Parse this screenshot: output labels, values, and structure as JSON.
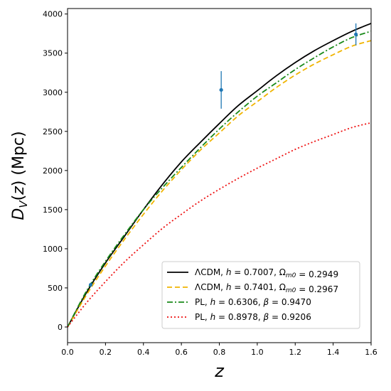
{
  "chart_data": {
    "type": "line",
    "xlabel": "z",
    "ylabel": "D_V(z) (Mpc)",
    "xlim": [
      0.0,
      1.6
    ],
    "ylim": [
      -200,
      4070
    ],
    "x_ticks": [
      0.0,
      0.2,
      0.4,
      0.6,
      0.8,
      1.0,
      1.2,
      1.4,
      1.6
    ],
    "x_tick_labels": [
      "0.0",
      "0.2",
      "0.4",
      "0.6",
      "0.8",
      "1.0",
      "1.2",
      "1.4",
      "1.6"
    ],
    "y_ticks": [
      0,
      500,
      1000,
      1500,
      2000,
      2500,
      3000,
      3500,
      4000
    ],
    "y_tick_labels": [
      "0",
      "500",
      "1000",
      "1500",
      "2000",
      "2500",
      "3000",
      "3500",
      "4000"
    ],
    "grid": false,
    "legend_position": "lower-right",
    "x": [
      0.0,
      0.1,
      0.2,
      0.3,
      0.4,
      0.5,
      0.6,
      0.7,
      0.8,
      0.9,
      1.0,
      1.1,
      1.2,
      1.3,
      1.4,
      1.5,
      1.6
    ],
    "series": [
      {
        "name": "ΛCDM, h = 0.7007, Ω_m0 = 0.2949",
        "label_parts": [
          {
            "text": "ΛCDM, ",
            "italic": false
          },
          {
            "text": "h",
            "italic": true
          },
          {
            "text": " = 0.7007, ",
            "italic": false
          },
          {
            "text": "Ω",
            "italic": false
          },
          {
            "text": "m0",
            "italic": true,
            "sub": true
          },
          {
            "text": " = 0.2949",
            "italic": false
          }
        ],
        "style": "solid",
        "color": "#000000",
        "values": [
          0,
          440,
          820,
          1160,
          1500,
          1820,
          2110,
          2360,
          2600,
          2830,
          3020,
          3210,
          3380,
          3530,
          3660,
          3780,
          3880
        ]
      },
      {
        "name": "ΛCDM, h = 0.7401, Ω_m0 = 0.2967",
        "label_parts": [
          {
            "text": "ΛCDM, ",
            "italic": false
          },
          {
            "text": "h",
            "italic": true
          },
          {
            "text": " = 0.7401, ",
            "italic": false
          },
          {
            "text": "Ω",
            "italic": false
          },
          {
            "text": "m0",
            "italic": true,
            "sub": true
          },
          {
            "text": " = 0.2967",
            "italic": false
          }
        ],
        "style": "dashed",
        "color": "#f0b400",
        "values": [
          0,
          410,
          780,
          1120,
          1440,
          1740,
          2010,
          2260,
          2480,
          2700,
          2880,
          3060,
          3220,
          3360,
          3480,
          3590,
          3660
        ]
      },
      {
        "name": "PL, h = 0.6306, β = 0.9470",
        "label_parts": [
          {
            "text": "PL, ",
            "italic": false
          },
          {
            "text": "h",
            "italic": true
          },
          {
            "text": " = 0.6306, ",
            "italic": false
          },
          {
            "text": "β",
            "italic": true
          },
          {
            "text": " = 0.9470",
            "italic": false
          }
        ],
        "style": "dashdot",
        "color": "#1a8a1a",
        "values": [
          0,
          460,
          840,
          1180,
          1500,
          1780,
          2040,
          2290,
          2530,
          2750,
          2950,
          3120,
          3290,
          3440,
          3580,
          3700,
          3780
        ]
      },
      {
        "name": "PL, h = 0.8978, β = 0.9206",
        "label_parts": [
          {
            "text": "PL, ",
            "italic": false
          },
          {
            "text": "h",
            "italic": true
          },
          {
            "text": " = 0.8978, ",
            "italic": false
          },
          {
            "text": "β",
            "italic": true
          },
          {
            "text": " = 0.9206",
            "italic": false
          }
        ],
        "style": "dotted",
        "color": "#ee1111",
        "values": [
          0,
          310,
          580,
          830,
          1050,
          1260,
          1440,
          1610,
          1760,
          1900,
          2030,
          2150,
          2270,
          2370,
          2460,
          2550,
          2610
        ]
      }
    ],
    "points": {
      "color": "#1f77b4",
      "data": [
        {
          "x": 0.122,
          "y": 540,
          "yerr": 25
        },
        {
          "x": 0.81,
          "y": 3030,
          "yerr": 240
        },
        {
          "x": 1.52,
          "y": 3740,
          "yerr": 140
        }
      ]
    }
  }
}
